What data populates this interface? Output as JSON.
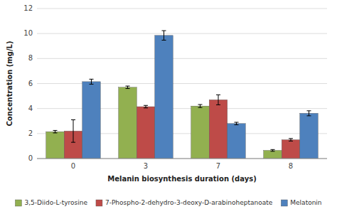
{
  "chart_data": {
    "type": "bar",
    "xlabel": "Melanin biosynthesis duration (days)",
    "ylabel": "Concentration (mg/L)",
    "categories": [
      "0",
      "3",
      "7",
      "8"
    ],
    "series": [
      {
        "name": "3,5-Diido-L-tyrosine",
        "color": "#92B050",
        "values": [
          2.15,
          5.7,
          4.2,
          0.65
        ],
        "errors": [
          0.1,
          0.1,
          0.12,
          0.07
        ]
      },
      {
        "name": "7-Phospho-2-dehydro-3-deoxy-D-arabinoheptanoate",
        "color": "#BE4B48",
        "values": [
          2.2,
          4.15,
          4.7,
          1.5
        ],
        "errors": [
          0.9,
          0.1,
          0.4,
          0.1
        ]
      },
      {
        "name": "Melatonin",
        "color": "#4E81BD",
        "values": [
          6.15,
          9.85,
          2.8,
          3.62
        ],
        "errors": [
          0.2,
          0.38,
          0.1,
          0.2
        ]
      }
    ],
    "ylim": [
      0,
      12
    ],
    "yticks": [
      0,
      2,
      4,
      6,
      8,
      10,
      12
    ],
    "grid": true,
    "legend": "bottom"
  }
}
